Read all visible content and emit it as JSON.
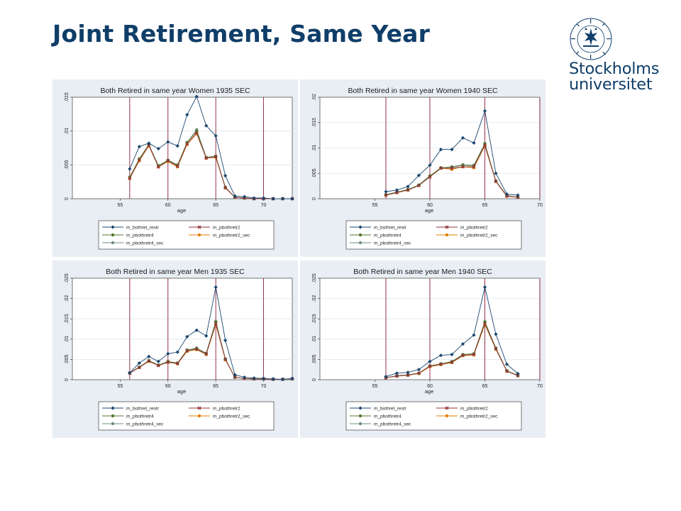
{
  "slide": {
    "title": "Joint Retirement, Same Year"
  },
  "logo": {
    "line1": "Stockholms",
    "line2": "universitet",
    "seal_text": "UNIVERSITET · STOCKHOLMS"
  },
  "colors": {
    "title": "#0f3e69",
    "panel_bg": "#e8eef4",
    "vline": "#8b1a3a",
    "m_bothret_restr": "#1a476f",
    "m_pbothretr2": "#90353b",
    "m_pbothretr4": "#55752f",
    "m_pbothretr2_sec": "#e37e00",
    "m_pbothretr4_sec": "#6e8e84"
  },
  "chart_data": [
    {
      "type": "line",
      "title": "Both Retired in same year Women 1935 SEC",
      "xlabel": "age",
      "xlim": [
        50,
        73
      ],
      "ylim": [
        0,
        0.015
      ],
      "xticks": [
        "55",
        "60",
        "65",
        "70"
      ],
      "yticks": [
        "0",
        ".005",
        ".01",
        ".015"
      ],
      "vlines": [
        56,
        60,
        65,
        70
      ],
      "x": [
        56,
        57,
        58,
        59,
        60,
        61,
        62,
        63,
        64,
        65,
        66,
        67,
        68,
        69,
        70,
        71,
        72,
        73
      ],
      "series": [
        {
          "name": "m_bothret_restr",
          "values": [
            0.0044,
            0.0077,
            0.0082,
            0.0074,
            0.0084,
            0.0078,
            0.0124,
            0.0151,
            0.0108,
            0.0093,
            0.0034,
            0.0004,
            0.0003,
            0.0001,
            0.0001,
            0.0,
            0.0,
            0.0
          ]
        },
        {
          "name": "m_pbothretr2",
          "values": [
            0.003,
            0.0057,
            0.0079,
            0.0047,
            0.0056,
            0.0048,
            0.0081,
            0.0097,
            0.006,
            0.0062,
            0.0016,
            0.0002,
            0.0001,
            0.0,
            0.0,
            0.0,
            0.0,
            0.0
          ]
        },
        {
          "name": "m_pbothretr4",
          "values": [
            0.0032,
            0.0059,
            0.008,
            0.0049,
            0.0057,
            0.005,
            0.0083,
            0.01,
            0.0061,
            0.0063,
            0.0017,
            0.0002,
            0.0001,
            0.0,
            0.0,
            0.0,
            0.0,
            0.0
          ]
        },
        {
          "name": "m_pbothretr2_sec",
          "values": [
            0.003,
            0.0056,
            0.0078,
            0.0047,
            0.0055,
            0.0047,
            0.008,
            0.0096,
            0.006,
            0.0061,
            0.0016,
            0.0002,
            0.0001,
            0.0,
            0.0,
            0.0,
            0.0,
            0.0
          ]
        },
        {
          "name": "m_pbothretr4_sec",
          "values": [
            0.0031,
            0.0058,
            0.0079,
            0.0048,
            0.0057,
            0.0049,
            0.0083,
            0.0102,
            0.0061,
            0.0062,
            0.0017,
            0.0002,
            0.0001,
            0.0,
            0.0,
            0.0,
            0.0,
            0.0
          ]
        }
      ]
    },
    {
      "type": "line",
      "title": "Both Retired in same year Women 1940 SEC",
      "xlabel": "age",
      "xlim": [
        50,
        70
      ],
      "ylim": [
        0,
        0.02
      ],
      "xticks": [
        "55",
        "60",
        "65",
        "70"
      ],
      "yticks": [
        "0",
        ".005",
        ".01",
        ".015",
        ".02"
      ],
      "vlines": [
        56,
        60,
        65,
        70
      ],
      "x": [
        56,
        57,
        58,
        59,
        60,
        61,
        62,
        63,
        64,
        65,
        66,
        67,
        68
      ],
      "series": [
        {
          "name": "m_bothret_restr",
          "values": [
            0.0014,
            0.0017,
            0.0024,
            0.0046,
            0.0066,
            0.0097,
            0.0097,
            0.012,
            0.011,
            0.0173,
            0.005,
            0.0009,
            0.0007
          ]
        },
        {
          "name": "m_pbothretr2",
          "values": [
            0.0007,
            0.0012,
            0.0017,
            0.0026,
            0.0043,
            0.006,
            0.006,
            0.0063,
            0.0063,
            0.0105,
            0.0034,
            0.0005,
            0.0003
          ]
        },
        {
          "name": "m_pbothretr4",
          "values": [
            0.0008,
            0.0013,
            0.0018,
            0.0027,
            0.0045,
            0.0061,
            0.0062,
            0.0066,
            0.0065,
            0.0108,
            0.0035,
            0.0006,
            0.0003
          ]
        },
        {
          "name": "m_pbothretr2_sec",
          "values": [
            0.0007,
            0.0012,
            0.0017,
            0.0026,
            0.0044,
            0.006,
            0.0058,
            0.0063,
            0.0061,
            0.0104,
            0.0034,
            0.0005,
            0.0003
          ]
        },
        {
          "name": "m_pbothretr4_sec",
          "values": [
            0.0008,
            0.0013,
            0.0018,
            0.0027,
            0.0045,
            0.0061,
            0.0063,
            0.0067,
            0.0066,
            0.0109,
            0.0035,
            0.0006,
            0.0003
          ]
        }
      ]
    },
    {
      "type": "line",
      "title": "Both Retired in same year Men 1935 SEC",
      "xlabel": "age",
      "xlim": [
        50,
        73
      ],
      "ylim": [
        0,
        0.025
      ],
      "xticks": [
        "55",
        "60",
        "65",
        "70"
      ],
      "yticks": [
        "0",
        ".005",
        ".01",
        ".015",
        ".02",
        ".025"
      ],
      "vlines": [
        56,
        60,
        65,
        70
      ],
      "x": [
        56,
        57,
        58,
        59,
        60,
        61,
        62,
        63,
        64,
        65,
        66,
        67,
        68,
        69,
        70,
        71,
        72,
        73
      ],
      "series": [
        {
          "name": "m_bothret_restr",
          "values": [
            0.0017,
            0.0041,
            0.0057,
            0.0045,
            0.0064,
            0.0068,
            0.0106,
            0.0122,
            0.0108,
            0.0228,
            0.0097,
            0.0012,
            0.0006,
            0.0004,
            0.0003,
            0.0002,
            0.0001,
            0.0003
          ]
        },
        {
          "name": "m_pbothretr2",
          "values": [
            0.0016,
            0.003,
            0.0046,
            0.0035,
            0.0043,
            0.004,
            0.0071,
            0.0075,
            0.0063,
            0.0138,
            0.005,
            0.0006,
            0.0003,
            0.0002,
            0.0002,
            0.0001,
            0.0001,
            0.0002
          ]
        },
        {
          "name": "m_pbothretr4",
          "values": [
            0.0017,
            0.0031,
            0.0047,
            0.0036,
            0.0045,
            0.0041,
            0.0073,
            0.0077,
            0.0065,
            0.0142,
            0.0051,
            0.0006,
            0.0003,
            0.0002,
            0.0002,
            0.0001,
            0.0001,
            0.0002
          ]
        },
        {
          "name": "m_pbothretr2_sec",
          "values": [
            0.0016,
            0.003,
            0.0045,
            0.0035,
            0.0043,
            0.0039,
            0.007,
            0.0074,
            0.0062,
            0.0136,
            0.0049,
            0.0006,
            0.0003,
            0.0002,
            0.0002,
            0.0001,
            0.0001,
            0.0002
          ]
        },
        {
          "name": "m_pbothretr4_sec",
          "values": [
            0.0017,
            0.0031,
            0.0047,
            0.0036,
            0.0045,
            0.0041,
            0.0073,
            0.0078,
            0.0065,
            0.0144,
            0.0051,
            0.0006,
            0.0003,
            0.0002,
            0.0002,
            0.0001,
            0.0001,
            0.0002
          ]
        }
      ]
    },
    {
      "type": "line",
      "title": "Both Retired in same year Men 1940 SEC",
      "xlabel": "age",
      "xlim": [
        50,
        70
      ],
      "ylim": [
        0,
        0.025
      ],
      "xticks": [
        "55",
        "60",
        "65",
        "70"
      ],
      "yticks": [
        "0",
        ".005",
        ".01",
        ".015",
        ".02",
        ".025"
      ],
      "vlines": [
        56,
        60,
        65,
        70
      ],
      "x": [
        56,
        57,
        58,
        59,
        60,
        61,
        62,
        63,
        64,
        65,
        66,
        67,
        68
      ],
      "series": [
        {
          "name": "m_bothret_restr",
          "values": [
            0.0008,
            0.0016,
            0.0018,
            0.0025,
            0.0045,
            0.006,
            0.0062,
            0.0088,
            0.011,
            0.0228,
            0.0112,
            0.0038,
            0.0015
          ]
        },
        {
          "name": "m_pbothretr2",
          "values": [
            0.0005,
            0.0009,
            0.0011,
            0.0016,
            0.0033,
            0.0038,
            0.0043,
            0.006,
            0.0062,
            0.0138,
            0.0076,
            0.0021,
            0.001
          ]
        },
        {
          "name": "m_pbothretr4",
          "values": [
            0.0005,
            0.0009,
            0.0012,
            0.0016,
            0.0034,
            0.0039,
            0.0044,
            0.0062,
            0.0064,
            0.0142,
            0.0078,
            0.0022,
            0.001
          ]
        },
        {
          "name": "m_pbothretr2_sec",
          "values": [
            0.0005,
            0.0009,
            0.0011,
            0.0015,
            0.0032,
            0.0037,
            0.0042,
            0.0059,
            0.0061,
            0.0136,
            0.0075,
            0.0021,
            0.001
          ]
        },
        {
          "name": "m_pbothretr4_sec",
          "values": [
            0.0005,
            0.001,
            0.0012,
            0.0016,
            0.0034,
            0.0039,
            0.0045,
            0.0062,
            0.0064,
            0.0143,
            0.0078,
            0.0022,
            0.0011
          ]
        }
      ]
    }
  ]
}
